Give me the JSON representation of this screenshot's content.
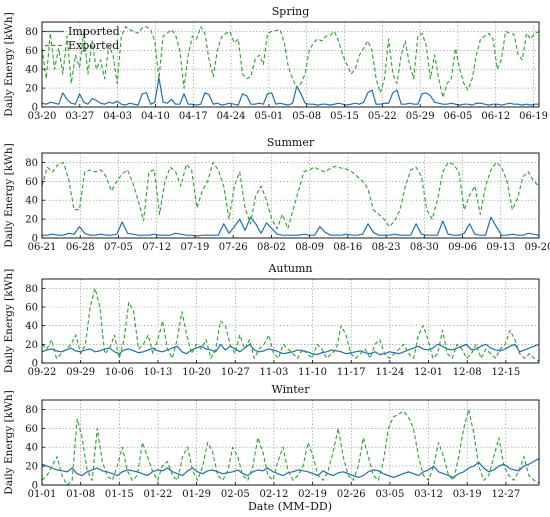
{
  "figure": {
    "xlabel": "Date (MM–DD)"
  },
  "colors": {
    "imported": "#1f6fb2",
    "exported": "#2ca02c"
  },
  "chart_data": [
    {
      "type": "line",
      "title": "Spring",
      "ylabel": "Daily Energy [kWh]",
      "ylim": [
        0,
        90
      ],
      "yticks": [
        0,
        20,
        40,
        60,
        80
      ],
      "grid": true,
      "legend": "top-left",
      "x_start": "03-20",
      "x_end": "06-20",
      "xticks": [
        "03-20",
        "03-27",
        "04-03",
        "04-10",
        "04-17",
        "04-24",
        "05-01",
        "05-08",
        "05-15",
        "05-22",
        "05-29",
        "06-05",
        "06-12",
        "06-19"
      ],
      "series": [
        {
          "name": "Imported",
          "style": "solid",
          "color": "#1f6fb2",
          "values": [
            4,
            3,
            5,
            4,
            3,
            15,
            8,
            4,
            3,
            14,
            5,
            3,
            9,
            7,
            4,
            3,
            5,
            4,
            6,
            3,
            2,
            4,
            3,
            2,
            14,
            15,
            3,
            5,
            31,
            5,
            4,
            8,
            3,
            3,
            14,
            3,
            3,
            2,
            3,
            15,
            13,
            3,
            4,
            2,
            3,
            4,
            3,
            2,
            14,
            12,
            3,
            3,
            4,
            3,
            14,
            15,
            3,
            4,
            3,
            2,
            4,
            22,
            14,
            4,
            3,
            3,
            2,
            3,
            3,
            2,
            3,
            4,
            3,
            2,
            3,
            4,
            3,
            5,
            15,
            18,
            3,
            3,
            4,
            4,
            15,
            18,
            3,
            3,
            4,
            3,
            3,
            14,
            15,
            12,
            5,
            4,
            3,
            3,
            4,
            3,
            2,
            3,
            3,
            2,
            4,
            4,
            3,
            2,
            3,
            3,
            2,
            3,
            4,
            3,
            3,
            2,
            3,
            2,
            3,
            3
          ]
        },
        {
          "name": "Exported",
          "style": "dashed",
          "color": "#2ca02c",
          "values": [
            62,
            30,
            78,
            40,
            62,
            35,
            75,
            25,
            55,
            42,
            80,
            35,
            70,
            40,
            50,
            30,
            65,
            55,
            25,
            75,
            85,
            82,
            80,
            78,
            84,
            85,
            82,
            70,
            30,
            75,
            78,
            82,
            76,
            60,
            20,
            55,
            75,
            72,
            85,
            78,
            50,
            32,
            60,
            74,
            78,
            80,
            68,
            72,
            35,
            30,
            32,
            50,
            55,
            45,
            78,
            80,
            81,
            82,
            68,
            42,
            30,
            20,
            25,
            35,
            60,
            68,
            72,
            70,
            75,
            76,
            80,
            70,
            55,
            45,
            35,
            40,
            55,
            62,
            70,
            60,
            30,
            15,
            30,
            72,
            35,
            25,
            55,
            70,
            45,
            30,
            75,
            78,
            65,
            30,
            55,
            30,
            10,
            25,
            30,
            62,
            40,
            25,
            18,
            30,
            55,
            72,
            75,
            78,
            72,
            40,
            50,
            80,
            78,
            77,
            55,
            50,
            78,
            72,
            78,
            80
          ]
        }
      ]
    },
    {
      "type": "line",
      "title": "Summer",
      "ylabel": "Daily Energy [kWh]",
      "ylim": [
        0,
        90
      ],
      "yticks": [
        0,
        20,
        40,
        60,
        80
      ],
      "grid": true,
      "legend": "",
      "x_start": "06-21",
      "x_end": "09-20",
      "xticks": [
        "06-21",
        "06-28",
        "07-05",
        "07-12",
        "07-19",
        "07-26",
        "08-02",
        "08-09",
        "08-16",
        "08-23",
        "08-30",
        "09-06",
        "09-13",
        "09-20"
      ],
      "series": [
        {
          "name": "Imported",
          "style": "solid",
          "color": "#1f6fb2",
          "values": [
            3,
            3,
            4,
            3,
            3,
            5,
            4,
            12,
            5,
            3,
            3,
            4,
            3,
            3,
            4,
            17,
            5,
            4,
            3,
            3,
            3,
            4,
            3,
            3,
            3,
            5,
            4,
            3,
            3,
            2,
            3,
            3,
            3,
            3,
            15,
            5,
            12,
            20,
            8,
            22,
            15,
            5,
            16,
            10,
            4,
            3,
            3,
            3,
            3,
            4,
            3,
            3,
            12,
            6,
            3,
            3,
            3,
            4,
            3,
            3,
            4,
            15,
            6,
            3,
            3,
            3,
            4,
            3,
            3,
            3,
            15,
            4,
            3,
            3,
            3,
            18,
            4,
            3,
            3,
            5,
            15,
            4,
            3,
            3,
            22,
            12,
            3,
            3,
            4,
            3,
            3,
            5,
            4,
            3
          ]
        },
        {
          "name": "Exported",
          "style": "dashed",
          "color": "#2ca02c",
          "values": [
            55,
            75,
            70,
            78,
            80,
            62,
            30,
            30,
            70,
            72,
            70,
            72,
            65,
            50,
            60,
            68,
            72,
            58,
            40,
            18,
            70,
            72,
            25,
            60,
            75,
            70,
            55,
            78,
            72,
            32,
            50,
            60,
            80,
            72,
            55,
            20,
            55,
            70,
            32,
            15,
            45,
            55,
            40,
            20,
            10,
            25,
            10,
            30,
            50,
            70,
            72,
            75,
            72,
            70,
            74,
            76,
            74,
            73,
            70,
            65,
            60,
            52,
            30,
            25,
            20,
            12,
            18,
            30,
            55,
            72,
            75,
            65,
            30,
            20,
            40,
            70,
            80,
            78,
            70,
            30,
            45,
            55,
            25,
            55,
            72,
            80,
            75,
            60,
            30,
            42,
            65,
            70,
            60,
            55
          ]
        }
      ]
    },
    {
      "type": "line",
      "title": "Autumn",
      "ylabel": "Daily Energy [kWh]",
      "ylim": [
        0,
        90
      ],
      "yticks": [
        0,
        20,
        40,
        60,
        80
      ],
      "grid": true,
      "legend": "",
      "x_start": "09-22",
      "x_end": "12-21",
      "xticks": [
        "09-22",
        "09-29",
        "10-06",
        "10-13",
        "10-20",
        "10-27",
        "11-03",
        "11-10",
        "11-17",
        "11-24",
        "12-01",
        "12-08",
        "12-15"
      ],
      "series": [
        {
          "name": "Imported",
          "style": "solid",
          "color": "#1f6fb2",
          "values": [
            12,
            14,
            15,
            13,
            12,
            14,
            16,
            13,
            12,
            14,
            15,
            12,
            13,
            15,
            16,
            12,
            10,
            14,
            15,
            13,
            11,
            12,
            14,
            16,
            13,
            12,
            14,
            16,
            18,
            12,
            10,
            14,
            16,
            18,
            15,
            14,
            12,
            20,
            14,
            18,
            15,
            12,
            16,
            20,
            14,
            12,
            13,
            15,
            14,
            12,
            10,
            11,
            12,
            14,
            13,
            12,
            10,
            9,
            11,
            12,
            14,
            13,
            12,
            10,
            11,
            12,
            13,
            11,
            10,
            12,
            9,
            10,
            12,
            11,
            10,
            12,
            14,
            16,
            18,
            15,
            14,
            16,
            20,
            18,
            15,
            14,
            16,
            18,
            20,
            14,
            15,
            18,
            20,
            16,
            14,
            13,
            15,
            18,
            20,
            12,
            14,
            16,
            18,
            20
          ]
        },
        {
          "name": "Exported",
          "style": "dashed",
          "color": "#2ca02c",
          "values": [
            20,
            15,
            25,
            5,
            10,
            15,
            20,
            30,
            10,
            20,
            60,
            80,
            60,
            10,
            15,
            30,
            5,
            25,
            65,
            55,
            15,
            20,
            30,
            10,
            25,
            45,
            15,
            5,
            25,
            55,
            30,
            10,
            20,
            15,
            25,
            5,
            15,
            45,
            40,
            20,
            10,
            30,
            15,
            25,
            5,
            15,
            20,
            30,
            10,
            5,
            20,
            15,
            10,
            5,
            15,
            10,
            5,
            20,
            15,
            5,
            10,
            15,
            40,
            30,
            10,
            5,
            10,
            15,
            5,
            20,
            25,
            10,
            5,
            10,
            15,
            20,
            10,
            5,
            30,
            40,
            25,
            5,
            10,
            35,
            10,
            5,
            20,
            15,
            5,
            10,
            20,
            5,
            15,
            10,
            5,
            15,
            20,
            35,
            25,
            10,
            5,
            10,
            5,
            2
          ]
        }
      ]
    },
    {
      "type": "line",
      "title": "Winter",
      "ylabel": "Daily Energy [kWh]",
      "ylim": [
        0,
        90
      ],
      "yticks": [
        0,
        20,
        40,
        60,
        80
      ],
      "grid": true,
      "legend": "",
      "x_start": "01-01",
      "x_end": "12-31",
      "xticks": [
        "01-01",
        "01-08",
        "01-15",
        "01-22",
        "01-29",
        "02-05",
        "02-12",
        "02-19",
        "02-26",
        "03-05",
        "03-12",
        "03-19",
        "12-27"
      ],
      "series": [
        {
          "name": "Imported",
          "style": "solid",
          "color": "#1f6fb2",
          "values": [
            22,
            20,
            18,
            16,
            15,
            14,
            18,
            12,
            10,
            14,
            16,
            18,
            15,
            14,
            12,
            10,
            14,
            16,
            15,
            14,
            12,
            10,
            14,
            16,
            15,
            18,
            14,
            12,
            10,
            15,
            18,
            14,
            12,
            15,
            16,
            14,
            12,
            13,
            14,
            16,
            12,
            10,
            14,
            16,
            15,
            18,
            14,
            12,
            10,
            13,
            14,
            16,
            15,
            14,
            12,
            10,
            15,
            12,
            10,
            13,
            14,
            12,
            10,
            8,
            10,
            14,
            16,
            15,
            12,
            10,
            8,
            10,
            12,
            14,
            12,
            10,
            14,
            16,
            20,
            14,
            12,
            10,
            8,
            12,
            14,
            18,
            20,
            24,
            18,
            14,
            16,
            20,
            22,
            18,
            16,
            15,
            20,
            22,
            25,
            28
          ]
        },
        {
          "name": "Exported",
          "style": "dashed",
          "color": "#2ca02c",
          "values": [
            5,
            10,
            20,
            30,
            10,
            0,
            5,
            70,
            50,
            15,
            5,
            60,
            25,
            10,
            5,
            20,
            40,
            15,
            5,
            10,
            45,
            30,
            15,
            5,
            20,
            25,
            10,
            5,
            30,
            40,
            15,
            5,
            20,
            45,
            35,
            10,
            5,
            15,
            40,
            30,
            10,
            5,
            20,
            50,
            35,
            10,
            5,
            25,
            40,
            15,
            5,
            10,
            20,
            45,
            30,
            10,
            5,
            15,
            35,
            60,
            30,
            10,
            5,
            20,
            50,
            30,
            10,
            5,
            25,
            60,
            72,
            75,
            78,
            72,
            60,
            30,
            10,
            5,
            20,
            45,
            30,
            10,
            5,
            30,
            60,
            80,
            55,
            20,
            5,
            10,
            30,
            50,
            20,
            10,
            5,
            15,
            30,
            10,
            5,
            2
          ]
        }
      ]
    }
  ]
}
